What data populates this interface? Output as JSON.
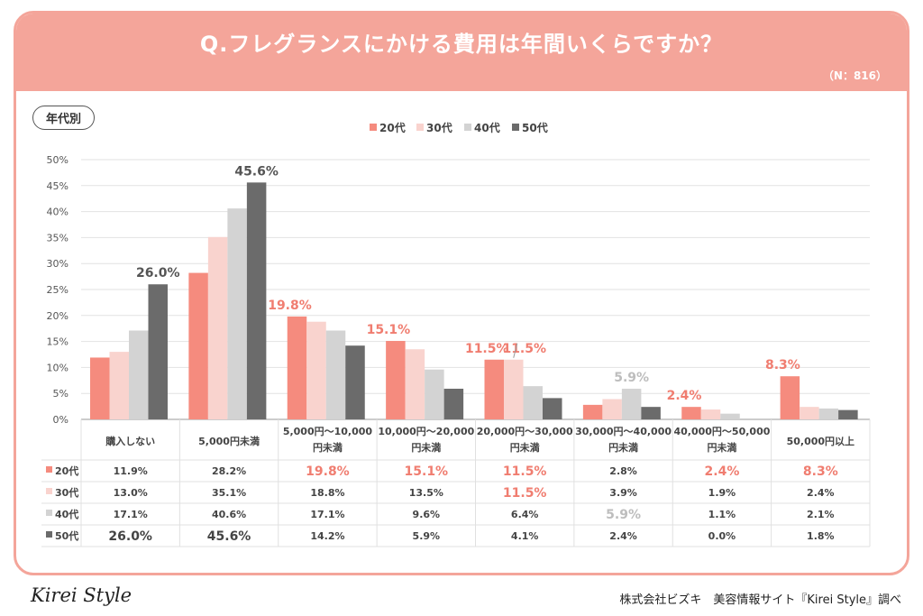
{
  "header": {
    "title": "Q.フレグランスにかける費用は年間いくらですか？",
    "sample": "（N：816）",
    "group_tag": "年代別"
  },
  "colors": {
    "banner": "#f4a59a",
    "series": [
      "#f58b7e",
      "#f9d3ce",
      "#d3d3d3",
      "#6b6b6b"
    ],
    "highlight_text": "#f07d70",
    "gray_highlight_text": "#bdbdbd"
  },
  "chart_data": {
    "type": "bar",
    "title": "Q.フレグランスにかける費用は年間いくらですか？",
    "categories": [
      "購入しない",
      "5,000円未満",
      "5,000円〜10,000円未満",
      "10,000円〜20,000円未満",
      "20,000円〜30,000円未満",
      "30,000円〜40,000円未満",
      "40,000円〜50,000円未満",
      "50,000円以上"
    ],
    "category_lines": [
      [
        "購入しない"
      ],
      [
        "5,000円未満"
      ],
      [
        "5,000円〜10,000",
        "円未満"
      ],
      [
        "10,000円〜20,000",
        "円未満"
      ],
      [
        "20,000円〜30,000",
        "円未満"
      ],
      [
        "30,000円〜40,000",
        "円未満"
      ],
      [
        "40,000円〜50,000",
        "円未満"
      ],
      [
        "50,000円以上"
      ]
    ],
    "series": [
      {
        "name": "20代",
        "values": [
          11.9,
          28.2,
          19.8,
          15.1,
          11.5,
          2.8,
          2.4,
          8.3
        ]
      },
      {
        "name": "30代",
        "values": [
          13.0,
          35.1,
          18.8,
          13.5,
          11.5,
          3.9,
          1.9,
          2.4
        ]
      },
      {
        "name": "40代",
        "values": [
          17.1,
          40.6,
          17.1,
          9.6,
          6.4,
          5.9,
          1.1,
          2.1
        ]
      },
      {
        "name": "50代",
        "values": [
          26.0,
          45.6,
          14.2,
          5.9,
          4.1,
          2.4,
          0.0,
          1.8
        ]
      }
    ],
    "ylim": [
      0,
      50
    ],
    "yticks": [
      "0%",
      "5%",
      "10%",
      "15%",
      "20%",
      "25%",
      "30%",
      "35%",
      "40%",
      "45%",
      "50%"
    ],
    "legend_position": "top-center",
    "annotations": [
      {
        "series": 3,
        "category": 0,
        "text": "26.0%",
        "style": "dark"
      },
      {
        "series": 3,
        "category": 1,
        "text": "45.6%",
        "style": "dark"
      },
      {
        "series": 0,
        "category": 2,
        "text": "19.8%",
        "style": "pink"
      },
      {
        "series": 0,
        "category": 3,
        "text": "15.1%",
        "style": "pink"
      },
      {
        "series": 0,
        "category": 4,
        "text": "11.5%",
        "style": "pink"
      },
      {
        "series": 1,
        "category": 4,
        "text": "11.5%",
        "style": "pink"
      },
      {
        "series": 2,
        "category": 5,
        "text": "5.9%",
        "style": "gray"
      },
      {
        "series": 0,
        "category": 6,
        "text": "2.4%",
        "style": "pink"
      },
      {
        "series": 0,
        "category": 7,
        "text": "8.3%",
        "style": "pink"
      }
    ],
    "table": {
      "rows": [
        {
          "label": "20代",
          "cells": [
            "11.9%",
            "28.2%",
            "19.8%",
            "15.1%",
            "11.5%",
            "2.8%",
            "2.4%",
            "8.3%"
          ],
          "emphasis": [
            "",
            "",
            "pink",
            "pink",
            "pink",
            "",
            "pink",
            "pink"
          ]
        },
        {
          "label": "30代",
          "cells": [
            "13.0%",
            "35.1%",
            "18.8%",
            "13.5%",
            "11.5%",
            "3.9%",
            "1.9%",
            "2.4%"
          ],
          "emphasis": [
            "",
            "",
            "",
            "",
            "pink",
            "",
            "",
            ""
          ]
        },
        {
          "label": "40代",
          "cells": [
            "17.1%",
            "40.6%",
            "17.1%",
            "9.6%",
            "6.4%",
            "5.9%",
            "1.1%",
            "2.1%"
          ],
          "emphasis": [
            "",
            "",
            "",
            "",
            "",
            "gray",
            "",
            ""
          ]
        },
        {
          "label": "50代",
          "cells": [
            "26.0%",
            "45.6%",
            "14.2%",
            "5.9%",
            "4.1%",
            "2.4%",
            "0.0%",
            "1.8%"
          ],
          "emphasis": [
            "dark",
            "dark",
            "",
            "",
            "",
            "",
            "",
            ""
          ]
        }
      ]
    }
  },
  "footer": {
    "logo": "Kirei Style",
    "source": "株式会社ビズキ　美容情報サイト『Kirei Style』調べ"
  }
}
